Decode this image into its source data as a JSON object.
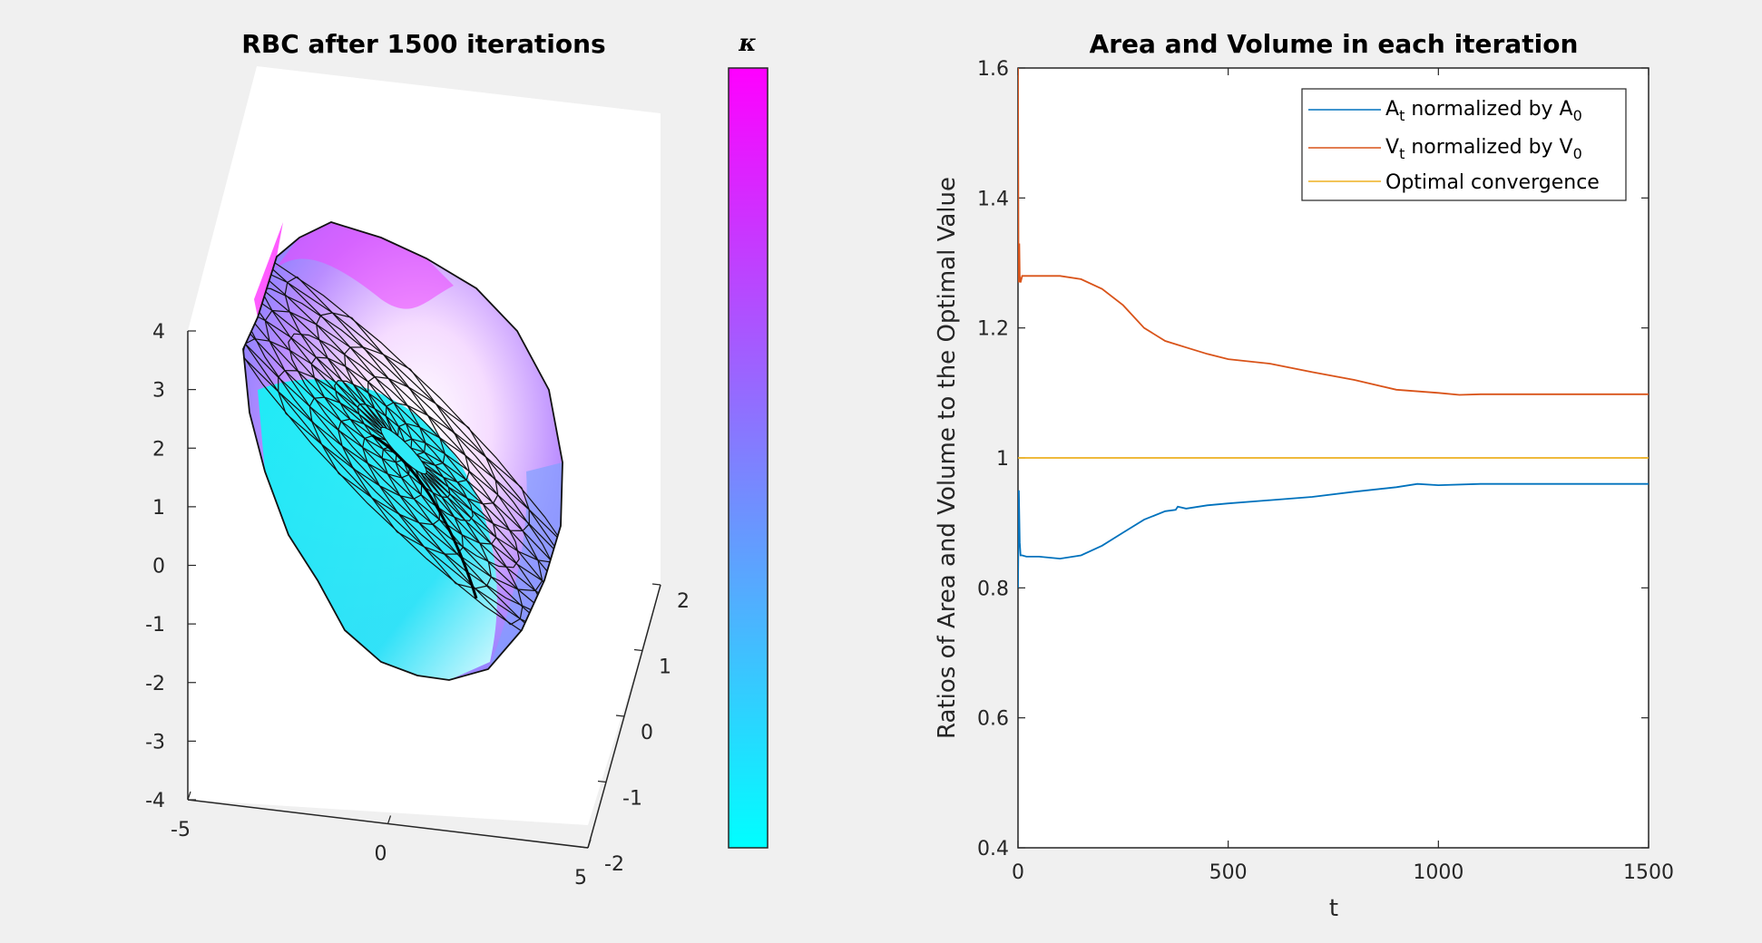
{
  "colors": {
    "area": "#0072bd",
    "volume": "#d95319",
    "optimal": "#edb120",
    "cmap_low": "#00ffff",
    "cmap_high": "#ff00ff"
  },
  "chart_data": [
    {
      "type": "surface3d",
      "title": "RBC after 1500 iterations",
      "xlim": [
        -5,
        5
      ],
      "ylim": [
        -2,
        2
      ],
      "zlim": [
        -4,
        4
      ],
      "x_ticks": [
        "-5",
        "0",
        "5"
      ],
      "y_ticks": [
        "-2",
        "-1",
        "0",
        "1",
        "2"
      ],
      "z_ticks": [
        "-4",
        "-3",
        "-2",
        "-1",
        "0",
        "1",
        "2",
        "3",
        "4"
      ],
      "colorbar": {
        "label": "κ",
        "colormap": "cool"
      }
    },
    {
      "type": "line",
      "title": "Area and Volume in each iteration",
      "xlabel": "t",
      "ylabel": "Ratios of Area and Volume to the Optimal Value",
      "xlim": [
        0,
        1500
      ],
      "ylim": [
        0.4,
        1.6
      ],
      "x_ticks": [
        "0",
        "500",
        "1000",
        "1500"
      ],
      "y_ticks": [
        "0.4",
        "0.6",
        "0.8",
        "1",
        "1.2",
        "1.4",
        "1.6"
      ],
      "legend_position": "top-right",
      "legend": [
        {
          "main": "A",
          "sub1": "t",
          "mid": " normalized by A",
          "sub2": "0"
        },
        {
          "main": "V",
          "sub1": "t",
          "mid": " normalized by V",
          "sub2": "0"
        },
        {
          "main": "Optimal convergence",
          "sub1": "",
          "mid": "",
          "sub2": ""
        }
      ],
      "series": [
        {
          "x": [
            0,
            2,
            4,
            6,
            10,
            20,
            50,
            100,
            150,
            200,
            250,
            300,
            350,
            375,
            380,
            400,
            450,
            500,
            600,
            700,
            800,
            900,
            950,
            1000,
            1100,
            1200,
            1300,
            1400,
            1500
          ],
          "y": [
            0.8,
            0.95,
            0.87,
            0.85,
            0.85,
            0.848,
            0.848,
            0.845,
            0.85,
            0.865,
            0.885,
            0.905,
            0.918,
            0.92,
            0.925,
            0.922,
            0.927,
            0.93,
            0.935,
            0.94,
            0.948,
            0.955,
            0.96,
            0.958,
            0.96,
            0.96,
            0.96,
            0.96,
            0.96
          ]
        },
        {
          "x": [
            0,
            1,
            2,
            3,
            4,
            6,
            10,
            20,
            50,
            100,
            150,
            200,
            250,
            300,
            350,
            400,
            450,
            500,
            600,
            700,
            800,
            900,
            1000,
            1050,
            1100,
            1200,
            1300,
            1400,
            1500
          ],
          "y": [
            1.6,
            1.32,
            1.27,
            1.33,
            1.28,
            1.27,
            1.28,
            1.28,
            1.28,
            1.28,
            1.275,
            1.26,
            1.235,
            1.2,
            1.18,
            1.17,
            1.16,
            1.152,
            1.145,
            1.132,
            1.12,
            1.105,
            1.1,
            1.097,
            1.098,
            1.098,
            1.098,
            1.098,
            1.098
          ]
        },
        {
          "x": [
            0,
            1500
          ],
          "y": [
            1,
            1
          ]
        }
      ]
    }
  ]
}
